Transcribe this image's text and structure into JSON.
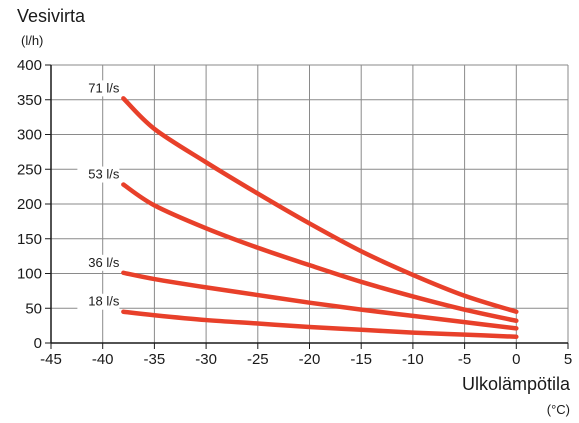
{
  "chart_data": {
    "type": "line",
    "ylabel": "Vesivirta",
    "ylabel_unit": "(l/h)",
    "xlabel": "Ulkolämpötila",
    "xlabel_unit": "(°C)",
    "xlim": [
      -45,
      5
    ],
    "ylim": [
      0,
      400
    ],
    "x_ticks": [
      -45,
      -40,
      -35,
      -30,
      -25,
      -20,
      -15,
      -10,
      -5,
      0,
      5
    ],
    "y_ticks": [
      0,
      50,
      100,
      150,
      200,
      250,
      300,
      350,
      400
    ],
    "grid": true,
    "line_color": "#e8402a",
    "series": [
      {
        "name": "71 l/s",
        "x": [
          -38,
          -35,
          -30,
          -25,
          -20,
          -15,
          -10,
          -5,
          0
        ],
        "y": [
          352,
          308,
          260,
          215,
          172,
          132,
          98,
          68,
          45
        ]
      },
      {
        "name": "53 l/s",
        "x": [
          -38,
          -35,
          -30,
          -25,
          -20,
          -15,
          -10,
          -5,
          0
        ],
        "y": [
          228,
          198,
          165,
          137,
          112,
          88,
          67,
          48,
          32
        ]
      },
      {
        "name": "36 l/s",
        "x": [
          -38,
          -35,
          -30,
          -25,
          -20,
          -15,
          -10,
          -5,
          0
        ],
        "y": [
          101,
          92,
          80,
          69,
          58,
          48,
          39,
          30,
          21
        ]
      },
      {
        "name": "18 l/s",
        "x": [
          -38,
          -35,
          -30,
          -25,
          -20,
          -15,
          -10,
          -5,
          0
        ],
        "y": [
          45,
          40,
          33,
          28,
          23,
          19,
          15,
          12,
          9
        ]
      }
    ]
  }
}
